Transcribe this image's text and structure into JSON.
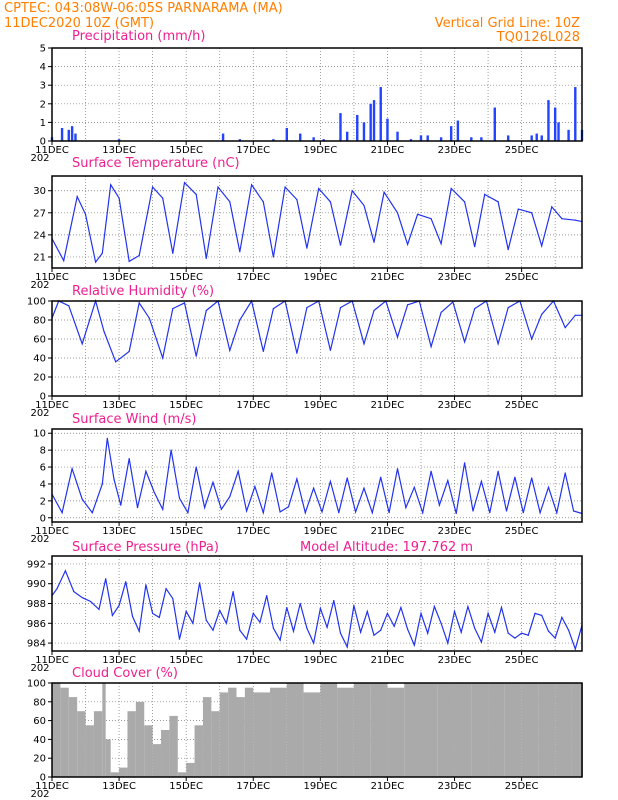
{
  "header": {
    "line1": "CPTEC:   043:08W-06:05S   PARNARAMA (MA)",
    "line2": "11DEC2020  10Z (GMT)",
    "grid_note": "Vertical Grid Line: 10Z",
    "model_id": "TQ0126L028"
  },
  "colors": {
    "header": "#ff7f00",
    "panel_title": "#ee1f8f",
    "series": "#2233ee",
    "bars": "#2244ff",
    "cloud": "#aaaaaa"
  },
  "date_labels": [
    "11DEC",
    "13DEC",
    "15DEC",
    "17DEC",
    "19DEC",
    "21DEC",
    "23DEC",
    "25DEC"
  ],
  "year_fragment": "202",
  "chart_data": [
    {
      "type": "bar",
      "title": "Precipitation (mm/h)",
      "ylim": [
        0,
        5
      ],
      "yticks": [
        "0",
        "1",
        "2",
        "3",
        "4",
        "5"
      ],
      "x_days": [
        11.0,
        11.3,
        11.5,
        11.6,
        11.7,
        13.0,
        16.1,
        16.6,
        17.6,
        18.0,
        18.4,
        18.8,
        19.1,
        19.6,
        19.8,
        20.1,
        20.3,
        20.5,
        20.6,
        20.8,
        21.0,
        21.3,
        21.7,
        22.0,
        22.2,
        22.6,
        22.9,
        23.1,
        23.5,
        23.8,
        24.2,
        24.6,
        25.3,
        25.45,
        25.6,
        25.8,
        26.0,
        26.1,
        26.4,
        26.6,
        26.8
      ],
      "values": [
        0.2,
        0.7,
        0.6,
        0.8,
        0.4,
        0.1,
        0.4,
        0.1,
        0.1,
        0.7,
        0.4,
        0.2,
        0.1,
        1.5,
        0.5,
        1.4,
        1.0,
        2.0,
        2.2,
        2.9,
        1.2,
        0.5,
        0.1,
        0.3,
        0.3,
        0.2,
        0.8,
        1.1,
        0.2,
        0.2,
        1.8,
        0.3,
        0.3,
        0.4,
        0.3,
        2.2,
        1.8,
        1.0,
        0.6,
        2.9,
        0.6
      ]
    },
    {
      "type": "line",
      "title": "Surface Temperature (nC)",
      "ylim": [
        19.5,
        32
      ],
      "yticks": [
        "21",
        "24",
        "27",
        "30"
      ],
      "x_days": [
        11.0,
        11.35,
        11.75,
        12.0,
        12.3,
        12.5,
        12.75,
        13.0,
        13.3,
        13.6,
        14.0,
        14.3,
        14.6,
        14.95,
        15.3,
        15.6,
        15.95,
        16.3,
        16.6,
        16.95,
        17.3,
        17.6,
        17.95,
        18.3,
        18.6,
        18.95,
        19.3,
        19.6,
        19.95,
        20.3,
        20.6,
        20.9,
        21.3,
        21.6,
        21.9,
        22.3,
        22.6,
        22.9,
        23.3,
        23.6,
        23.9,
        24.3,
        24.6,
        24.9,
        25.3,
        25.6,
        25.9,
        26.2,
        26.6,
        26.8
      ],
      "values": [
        23.5,
        20.5,
        29.2,
        26.8,
        20.3,
        21.5,
        30.8,
        29.0,
        20.4,
        21.2,
        30.5,
        29.0,
        21.5,
        31.1,
        29.5,
        20.8,
        30.5,
        28.5,
        21.7,
        30.8,
        28.5,
        21.0,
        30.5,
        28.8,
        22.2,
        30.3,
        28.5,
        22.6,
        30.0,
        28.0,
        23.0,
        29.8,
        27.0,
        22.7,
        26.8,
        26.2,
        22.8,
        30.3,
        28.5,
        22.4,
        29.5,
        28.5,
        22.0,
        27.5,
        27.0,
        22.5,
        27.8,
        26.2,
        26.0,
        25.8
      ]
    },
    {
      "type": "line",
      "title": "Relative Humidity (%)",
      "ylim": [
        0,
        100
      ],
      "yticks": [
        "0",
        "20",
        "40",
        "60",
        "80",
        "100"
      ],
      "x_days": [
        11.0,
        11.2,
        11.5,
        11.9,
        12.3,
        12.55,
        12.9,
        13.3,
        13.6,
        13.9,
        14.3,
        14.6,
        14.95,
        15.3,
        15.6,
        15.95,
        16.3,
        16.6,
        16.95,
        17.3,
        17.6,
        17.95,
        18.3,
        18.6,
        18.95,
        19.3,
        19.6,
        19.95,
        20.3,
        20.6,
        20.95,
        21.3,
        21.6,
        21.95,
        22.3,
        22.6,
        22.95,
        23.3,
        23.6,
        23.95,
        24.3,
        24.6,
        24.95,
        25.3,
        25.6,
        25.95,
        26.3,
        26.6,
        26.8
      ],
      "values": [
        82,
        100,
        95,
        55,
        100,
        68,
        36,
        47,
        98,
        82,
        40,
        92,
        98,
        42,
        90,
        100,
        48,
        80,
        100,
        47,
        92,
        100,
        45,
        93,
        100,
        48,
        93,
        100,
        55,
        90,
        100,
        62,
        96,
        100,
        52,
        88,
        99,
        57,
        92,
        100,
        55,
        93,
        100,
        60,
        86,
        100,
        72,
        85,
        85
      ]
    },
    {
      "type": "line",
      "title": "Surface Wind (m/s)",
      "ylim": [
        -0.5,
        10.5
      ],
      "yticks": [
        "0",
        "2",
        "4",
        "6",
        "8",
        "10"
      ],
      "x_days": [
        11.0,
        11.3,
        11.6,
        11.9,
        12.2,
        12.5,
        12.65,
        12.85,
        13.05,
        13.3,
        13.55,
        13.8,
        14.05,
        14.3,
        14.55,
        14.8,
        15.05,
        15.3,
        15.55,
        15.8,
        16.05,
        16.3,
        16.55,
        16.8,
        17.05,
        17.3,
        17.55,
        17.8,
        18.05,
        18.3,
        18.55,
        18.8,
        19.05,
        19.3,
        19.55,
        19.8,
        20.05,
        20.3,
        20.55,
        20.8,
        21.05,
        21.3,
        21.55,
        21.8,
        22.05,
        22.3,
        22.55,
        22.8,
        23.05,
        23.3,
        23.55,
        23.8,
        24.05,
        24.3,
        24.55,
        24.8,
        25.05,
        25.3,
        25.55,
        25.8,
        26.05,
        26.3,
        26.55,
        26.8
      ],
      "values": [
        2.8,
        0.6,
        5.8,
        2.2,
        0.6,
        4.0,
        9.4,
        4.5,
        1.5,
        7.0,
        1.2,
        5.5,
        3.0,
        1.0,
        8.0,
        2.3,
        0.6,
        6.0,
        1.2,
        4.2,
        1.0,
        2.5,
        5.5,
        0.8,
        3.7,
        0.6,
        5.3,
        0.7,
        1.3,
        4.6,
        0.6,
        3.5,
        0.7,
        4.3,
        0.6,
        4.7,
        0.7,
        3.5,
        0.6,
        4.8,
        0.6,
        5.8,
        1.2,
        3.6,
        0.6,
        5.5,
        1.5,
        4.4,
        0.5,
        6.5,
        0.8,
        4.3,
        0.6,
        5.5,
        0.8,
        4.8,
        0.6,
        4.7,
        0.6,
        3.6,
        0.6,
        5.3,
        0.8,
        0.5
      ]
    },
    {
      "type": "line",
      "title": "Surface Pressure (hPa)",
      "annotation": "Model Altitude: 197.762 m",
      "ylim": [
        983.2,
        992.8
      ],
      "yticks": [
        "984",
        "986",
        "988",
        "990",
        "992"
      ],
      "x_days": [
        11.0,
        11.15,
        11.4,
        11.65,
        11.9,
        12.15,
        12.4,
        12.6,
        12.8,
        13.0,
        13.2,
        13.4,
        13.6,
        13.8,
        14.0,
        14.2,
        14.4,
        14.6,
        14.8,
        15.0,
        15.2,
        15.4,
        15.6,
        15.8,
        16.0,
        16.2,
        16.4,
        16.6,
        16.8,
        17.0,
        17.2,
        17.4,
        17.6,
        17.8,
        18.0,
        18.2,
        18.4,
        18.6,
        18.8,
        19.0,
        19.2,
        19.4,
        19.6,
        19.8,
        20.0,
        20.2,
        20.4,
        20.6,
        20.8,
        21.0,
        21.2,
        21.4,
        21.6,
        21.8,
        22.0,
        22.2,
        22.4,
        22.6,
        22.8,
        23.0,
        23.2,
        23.4,
        23.6,
        23.8,
        24.0,
        24.2,
        24.4,
        24.6,
        24.8,
        25.0,
        25.2,
        25.4,
        25.6,
        25.8,
        26.0,
        26.2,
        26.4,
        26.6,
        26.8
      ],
      "values": [
        988.8,
        989.5,
        991.3,
        989.2,
        988.6,
        988.2,
        987.4,
        990.5,
        986.8,
        987.8,
        990.2,
        986.7,
        985.2,
        989.9,
        987.0,
        986.6,
        989.5,
        988.5,
        984.4,
        987.2,
        986.0,
        990.1,
        986.3,
        985.3,
        987.3,
        986.0,
        989.2,
        985.3,
        984.4,
        987.0,
        986.1,
        988.8,
        985.5,
        984.3,
        987.6,
        985.2,
        988.0,
        985.5,
        984.0,
        987.5,
        985.6,
        988.3,
        985.0,
        983.6,
        987.8,
        985.1,
        987.2,
        984.8,
        985.3,
        987.0,
        985.7,
        987.6,
        985.4,
        983.8,
        987.0,
        985.0,
        987.7,
        986.0,
        984.0,
        987.2,
        985.1,
        987.7,
        985.5,
        984.1,
        987.0,
        985.1,
        987.6,
        985.0,
        984.5,
        985.0,
        984.8,
        987.0,
        986.8,
        985.2,
        984.5,
        986.6,
        985.3,
        983.4,
        985.8
      ]
    },
    {
      "type": "area",
      "title": "Cloud Cover (%)",
      "ylim": [
        0,
        100
      ],
      "yticks": [
        "0",
        "20",
        "40",
        "60",
        "80",
        "100"
      ],
      "x_days": [
        11.0,
        11.25,
        11.5,
        11.75,
        12.0,
        12.25,
        12.5,
        12.6,
        12.75,
        13.0,
        13.25,
        13.5,
        13.75,
        14.0,
        14.25,
        14.5,
        14.75,
        15.0,
        15.25,
        15.5,
        15.75,
        16.0,
        16.25,
        16.5,
        16.75,
        17.0,
        17.5,
        18.0,
        18.5,
        19.0,
        19.5,
        20.0,
        20.5,
        21.0,
        21.5,
        22.0,
        22.5,
        23.0,
        23.5,
        24.0,
        24.5,
        25.0,
        25.5,
        26.0,
        26.5,
        26.8
      ],
      "values": [
        100,
        95,
        85,
        70,
        55,
        70,
        100,
        40,
        5,
        10,
        70,
        80,
        55,
        35,
        50,
        65,
        5,
        15,
        55,
        85,
        70,
        90,
        95,
        85,
        95,
        90,
        95,
        100,
        90,
        100,
        95,
        100,
        100,
        95,
        100,
        100,
        100,
        100,
        100,
        100,
        100,
        100,
        100,
        100,
        100,
        100
      ]
    }
  ]
}
